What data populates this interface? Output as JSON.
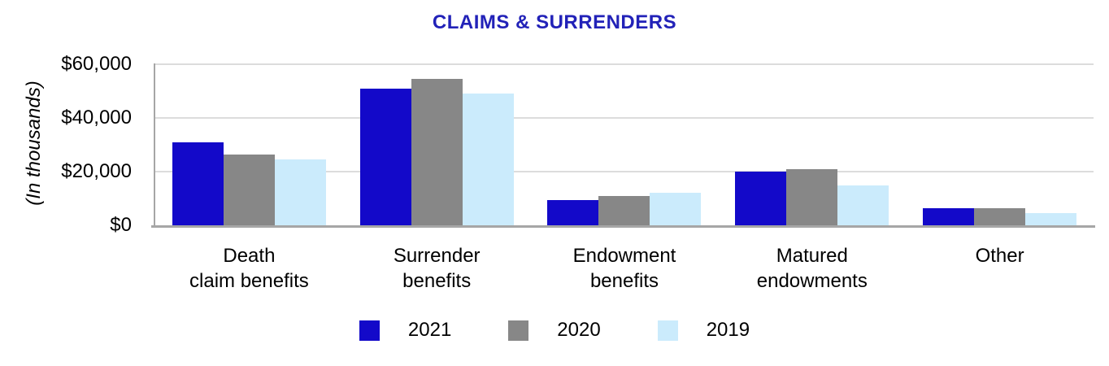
{
  "chart": {
    "title": "CLAIMS & SURRENDERS",
    "y_axis_label": "(In thousands)"
  },
  "chart_data": {
    "type": "bar",
    "title": "CLAIMS & SURRENDERS",
    "ylabel": "(In thousands)",
    "xlabel": "",
    "ylim": [
      0,
      60000
    ],
    "yticks": [
      0,
      20000,
      40000,
      60000
    ],
    "ytick_labels": [
      "$0",
      "$20,000",
      "$40,000",
      "$60,000"
    ],
    "grid": true,
    "legend_position": "bottom",
    "categories": [
      "Death claim benefits",
      "Surrender benefits",
      "Endowment benefits",
      "Matured endowments",
      "Other"
    ],
    "category_label_lines": [
      [
        "Death",
        "claim benefits"
      ],
      [
        "Surrender",
        "benefits"
      ],
      [
        "Endowment",
        "benefits"
      ],
      [
        "Matured",
        "endowments"
      ],
      [
        "Other"
      ]
    ],
    "series": [
      {
        "name": "2021",
        "color": "#1309C9",
        "values": [
          31000,
          51000,
          9500,
          20000,
          6500
        ]
      },
      {
        "name": "2020",
        "color": "#878787",
        "values": [
          26500,
          54500,
          11000,
          21000,
          6500
        ]
      },
      {
        "name": "2019",
        "color": "#CBEBFC",
        "values": [
          24500,
          49000,
          12000,
          15000,
          4500
        ]
      }
    ]
  },
  "colors": {
    "title": "#2222B8",
    "gridline": "#DCDCDC",
    "axis_line": "#A6A6A6",
    "series_2021": "#1309C9",
    "series_2020": "#878787",
    "series_2019": "#CBEBFC"
  }
}
